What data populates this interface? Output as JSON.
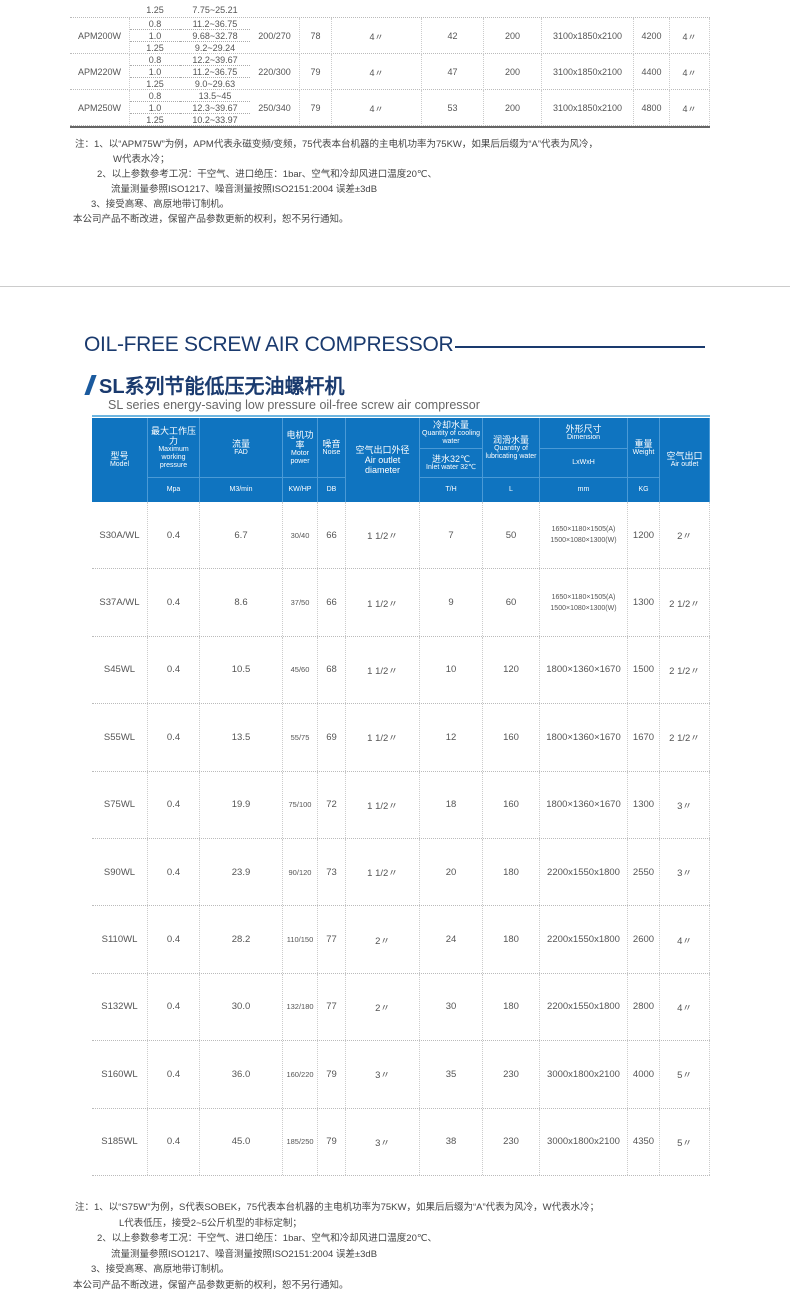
{
  "top_table": {
    "partial_group": {
      "sub_rows": [
        {
          "pressure": "1.25",
          "fad": "7.75~25.21"
        }
      ]
    },
    "groups": [
      {
        "model": "APM200W",
        "sub_rows": [
          {
            "pressure": "0.8",
            "fad": "11.2~36.75"
          },
          {
            "pressure": "1.0",
            "fad": "9.68~32.78"
          },
          {
            "pressure": "1.25",
            "fad": "9.2~29.24"
          }
        ],
        "power": "200/270",
        "noise": "78",
        "outlet_dia": "4〃",
        "cooling": "42",
        "lub": "200",
        "dim": "3100x1850x2100",
        "weight": "4200",
        "outlet": "4〃"
      },
      {
        "model": "APM220W",
        "sub_rows": [
          {
            "pressure": "0.8",
            "fad": "12.2~39.67"
          },
          {
            "pressure": "1.0",
            "fad": "11.2~36.75"
          },
          {
            "pressure": "1.25",
            "fad": "9.0~29.63"
          }
        ],
        "power": "220/300",
        "noise": "79",
        "outlet_dia": "4〃",
        "cooling": "47",
        "lub": "200",
        "dim": "3100x1850x2100",
        "weight": "4400",
        "outlet": "4〃"
      },
      {
        "model": "APM250W",
        "sub_rows": [
          {
            "pressure": "0.8",
            "fad": "13.5~45"
          },
          {
            "pressure": "1.0",
            "fad": "12.3~39.67"
          },
          {
            "pressure": "1.25",
            "fad": "10.2~33.97"
          }
        ],
        "power": "250/340",
        "noise": "79",
        "outlet_dia": "4〃",
        "cooling": "53",
        "lub": "200",
        "dim": "3100x1850x2100",
        "weight": "4800",
        "outlet": "4〃"
      }
    ]
  },
  "top_notes": [
    "注：1、以“APM75W”为例，APM代表永磁变频/变频，75代表本台机器的主电机功率为75KW，如果后后缀为“A”代表为风冷，",
    "W代表水冷；",
    "2、以上参数参考工况：干空气、进口绝压：1bar、空气和冷却风进口温度20℃、",
    "流量测量参照ISO1217、噪音测量按照ISO2151:2004 误差±3dB",
    "3、接受高寒、高原地带订制机。",
    "本公司产品不断改进，保留产品参数更新的权利，恕不另行通知。"
  ],
  "section": {
    "title": "OIL-FREE SCREW  AIR COMPRESSOR",
    "cn_title": "SL系列节能低压无油螺杆机",
    "en_subtitle": "SL series energy-saving low pressure oil-free screw air compressor"
  },
  "header": {
    "model": {
      "cn": "型号",
      "en": "Model"
    },
    "pressure": {
      "cn": "最大工作压力",
      "en": "Maximum working pressure",
      "unit": "Mpa"
    },
    "fad": {
      "cn": "流量",
      "en": "FAD",
      "unit": "M3/min"
    },
    "power": {
      "cn": "电机功率",
      "en": "Motor power",
      "unit": "KW/HP"
    },
    "noise": {
      "cn": "噪音",
      "en": "Noise",
      "unit": "DB"
    },
    "outlet_dia": {
      "cn": "空气出口外径",
      "en": "Air outlet diameter"
    },
    "cooling": {
      "cn": "冷却水量",
      "en": "Quantity of cooling water",
      "cn2": "进水32℃",
      "en2": "Inlet water 32℃",
      "unit": "T/H"
    },
    "lub": {
      "cn": "润滑水量",
      "en": "Quantity of lubricating water",
      "unit": "L"
    },
    "dim": {
      "cn": "外形尺寸",
      "en": "Dimension",
      "sub": "LxWxH",
      "unit": "mm"
    },
    "weight": {
      "cn": "重量",
      "en": "Weight",
      "unit": "KG"
    },
    "outlet": {
      "cn": "空气出口",
      "en": "Air outlet"
    }
  },
  "rows": [
    {
      "model": "S30A/WL",
      "pressure": "0.4",
      "fad": "6.7",
      "power": "30/40",
      "noise": "66",
      "outlet_dia": "1 1/2〃",
      "cooling": "7",
      "lub": "50",
      "dim": "1650×1180×1505(A)\n1500×1080×1300(W)",
      "weight": "1200",
      "outlet": "2〃"
    },
    {
      "model": "S37A/WL",
      "pressure": "0.4",
      "fad": "8.6",
      "power": "37/50",
      "noise": "66",
      "outlet_dia": "1 1/2〃",
      "cooling": "9",
      "lub": "60",
      "dim": "1650×1180×1505(A)\n1500×1080×1300(W)",
      "weight": "1300",
      "outlet": "2 1/2〃"
    },
    {
      "model": "S45WL",
      "pressure": "0.4",
      "fad": "10.5",
      "power": "45/60",
      "noise": "68",
      "outlet_dia": "1 1/2〃",
      "cooling": "10",
      "lub": "120",
      "dim": "1800×1360×1670",
      "weight": "1500",
      "outlet": "2 1/2〃"
    },
    {
      "model": "S55WL",
      "pressure": "0.4",
      "fad": "13.5",
      "power": "55/75",
      "noise": "69",
      "outlet_dia": "1 1/2〃",
      "cooling": "12",
      "lub": "160",
      "dim": "1800×1360×1670",
      "weight": "1670",
      "outlet": "2 1/2〃"
    },
    {
      "model": "S75WL",
      "pressure": "0.4",
      "fad": "19.9",
      "power": "75/100",
      "noise": "72",
      "outlet_dia": "1 1/2〃",
      "cooling": "18",
      "lub": "160",
      "dim": "1800×1360×1670",
      "weight": "1300",
      "outlet": "3〃"
    },
    {
      "model": "S90WL",
      "pressure": "0.4",
      "fad": "23.9",
      "power": "90/120",
      "noise": "73",
      "outlet_dia": "1 1/2〃",
      "cooling": "20",
      "lub": "180",
      "dim": "2200x1550x1800",
      "weight": "2550",
      "outlet": "3〃"
    },
    {
      "model": "S110WL",
      "pressure": "0.4",
      "fad": "28.2",
      "power": "110/150",
      "noise": "77",
      "outlet_dia": "2〃",
      "cooling": "24",
      "lub": "180",
      "dim": "2200x1550x1800",
      "weight": "2600",
      "outlet": "4〃"
    },
    {
      "model": "S132WL",
      "pressure": "0.4",
      "fad": "30.0",
      "power": "132/180",
      "noise": "77",
      "outlet_dia": "2〃",
      "cooling": "30",
      "lub": "180",
      "dim": "2200x1550x1800",
      "weight": "2800",
      "outlet": "4〃"
    },
    {
      "model": "S160WL",
      "pressure": "0.4",
      "fad": "36.0",
      "power": "160/220",
      "noise": "79",
      "outlet_dia": "3〃",
      "cooling": "35",
      "lub": "230",
      "dim": "3000x1800x2100",
      "weight": "4000",
      "outlet": "5〃"
    },
    {
      "model": "S185WL",
      "pressure": "0.4",
      "fad": "45.0",
      "power": "185/250",
      "noise": "79",
      "outlet_dia": "3〃",
      "cooling": "38",
      "lub": "230",
      "dim": "3000x1800x2100",
      "weight": "4350",
      "outlet": "5〃"
    }
  ],
  "bottom_notes": [
    "注：1、以“S75W”为例，S代表SOBEK，75代表本台机器的主电机功率为75KW，如果后后缀为“A”代表为风冷，W代表水冷；",
    "L代表低压，接受2~5公斤机型的非标定制；",
    "2、以上参数参考工况：干空气、进口绝压：1bar、空气和冷却风进口温度20℃、",
    "流量测量参照ISO1217、噪音测量按照ISO2151:2004 误差±3dB",
    "3、接受高寒、高原地带订制机。",
    "本公司产品不断改进，保留产品参数更新的权利，恕不另行通知。"
  ],
  "colors": {
    "header_bg": "#0f74c0",
    "title": "#1a3a6e"
  }
}
